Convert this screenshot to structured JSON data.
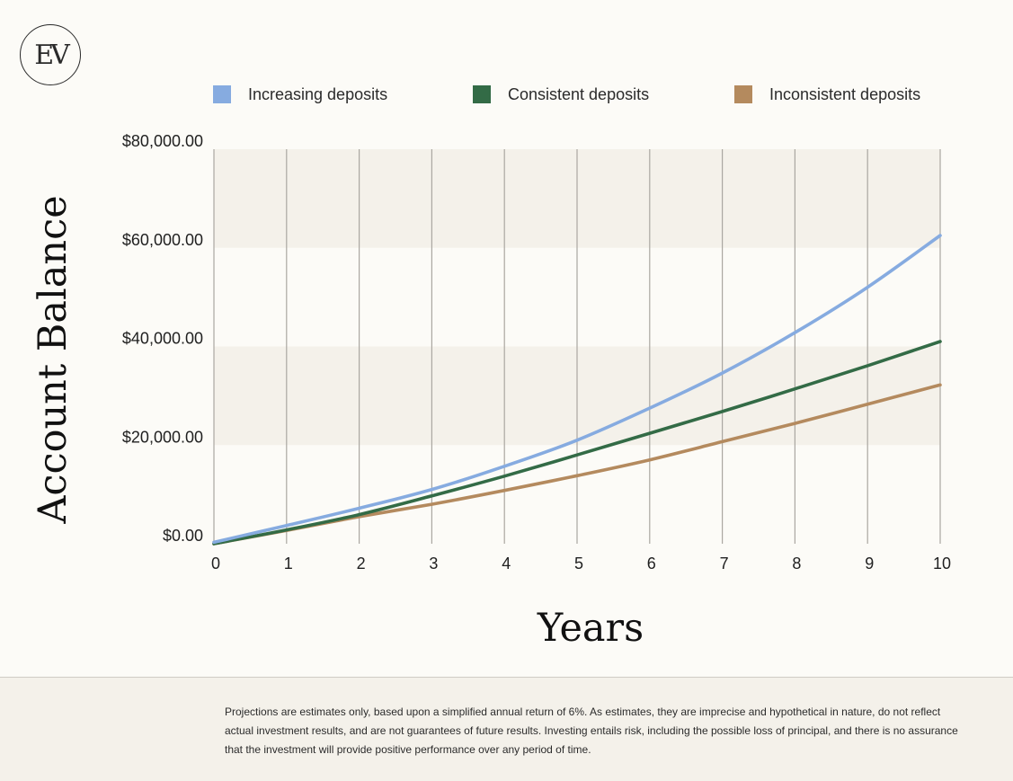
{
  "logo": {
    "text": "EV"
  },
  "chart_data": {
    "type": "line",
    "title": "",
    "xlabel": "Years",
    "ylabel": "Account Balance",
    "x": [
      0,
      1,
      2,
      3,
      4,
      5,
      6,
      7,
      8,
      9,
      10
    ],
    "xlim": [
      0,
      10
    ],
    "ylim": [
      0,
      80000
    ],
    "yticks": [
      0,
      20000,
      40000,
      60000,
      80000
    ],
    "ytick_labels": [
      "$0.00",
      "$20,000.00",
      "$40,000.00",
      "$60,000.00",
      "$80,000.00"
    ],
    "xtick_labels": [
      "0",
      "1",
      "2",
      "3",
      "4",
      "5",
      "6",
      "7",
      "8",
      "9",
      "10"
    ],
    "grid": "vertical lines with alternating horizontal bands",
    "legend_position": "top",
    "series": [
      {
        "name": "Increasing deposits",
        "color": "#86abe0",
        "values": [
          300,
          3700,
          7200,
          11000,
          15700,
          21000,
          27500,
          34600,
          42800,
          52000,
          62500
        ]
      },
      {
        "name": "Consistent deposits",
        "color": "#336b46",
        "values": [
          0,
          2800,
          5900,
          9700,
          13700,
          18000,
          22400,
          26800,
          31400,
          36100,
          41000
        ]
      },
      {
        "name": "Inconsistent deposits",
        "color": "#b48a5e",
        "values": [
          0,
          2700,
          5500,
          8000,
          10800,
          13800,
          17000,
          20700,
          24400,
          28300,
          32200
        ]
      }
    ]
  },
  "footer": {
    "disclaimer": "Projections are estimates only, based upon a simplified annual return of 6%. As estimates, they are imprecise and hypothetical in nature, do not reflect actual investment results, and are not guarantees of future results. Investing entails risk, including the possible loss of principal, and there is no assurance that the investment will provide positive performance over any period of time."
  }
}
